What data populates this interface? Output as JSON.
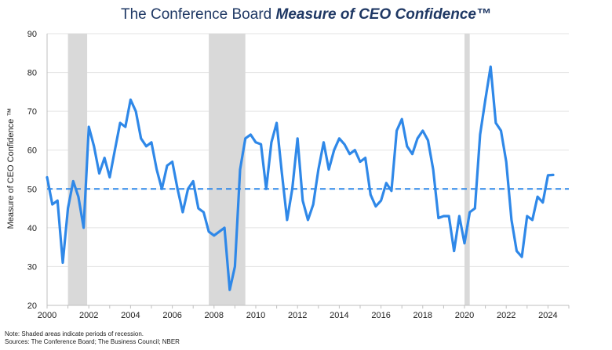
{
  "title_prefix": "The Conference Board ",
  "title_emph": "Measure of CEO Confidence™",
  "chart_data": {
    "type": "line",
    "ylabel": "Measure of CEO Confidence ™",
    "xlabel": "",
    "ylim": [
      20,
      90
    ],
    "xlim": [
      2000,
      2025
    ],
    "y_ticks": [
      20,
      30,
      40,
      50,
      60,
      70,
      80,
      90
    ],
    "x_ticks": [
      "2000",
      "2002",
      "2004",
      "2006",
      "2008",
      "2010",
      "2012",
      "2014",
      "2016",
      "2018",
      "2020",
      "2022",
      "2024"
    ],
    "grid": true,
    "reference_line": 50,
    "recessions": [
      [
        2001.0,
        2001.92
      ],
      [
        2007.75,
        2009.5
      ],
      [
        2020.0,
        2020.25
      ]
    ],
    "series": [
      {
        "name": "CEO Confidence",
        "color": "#2f88e8",
        "x_start": 2000.0,
        "step": 0.25,
        "values": [
          53,
          46,
          47,
          31,
          45,
          52,
          48,
          40,
          66,
          61,
          54,
          58,
          53,
          60,
          67,
          66,
          73,
          70,
          63,
          61,
          62,
          55,
          50,
          56,
          57,
          50,
          44,
          50,
          52,
          45,
          44,
          39,
          38,
          39,
          40,
          24,
          30,
          55,
          63,
          64,
          62,
          61.5,
          50,
          62,
          67,
          54,
          42,
          50,
          63,
          47,
          42,
          46,
          55,
          62,
          55,
          60,
          63,
          61.5,
          59,
          60,
          57,
          58,
          48.5,
          45.5,
          47,
          51.5,
          49.5,
          65,
          68,
          61,
          59,
          63,
          65,
          62.5,
          55,
          42.5,
          43,
          43,
          34,
          43,
          36,
          44,
          45,
          64,
          73,
          81.5,
          67,
          65,
          57,
          42,
          34,
          32.5,
          43,
          42,
          48,
          46.5,
          53.5,
          53.6
        ]
      }
    ]
  },
  "notes": {
    "line1": "Note: Shaded areas indicate periods of recession.",
    "line2": "Sources: The Conference Board; The Business Council; NBER"
  }
}
